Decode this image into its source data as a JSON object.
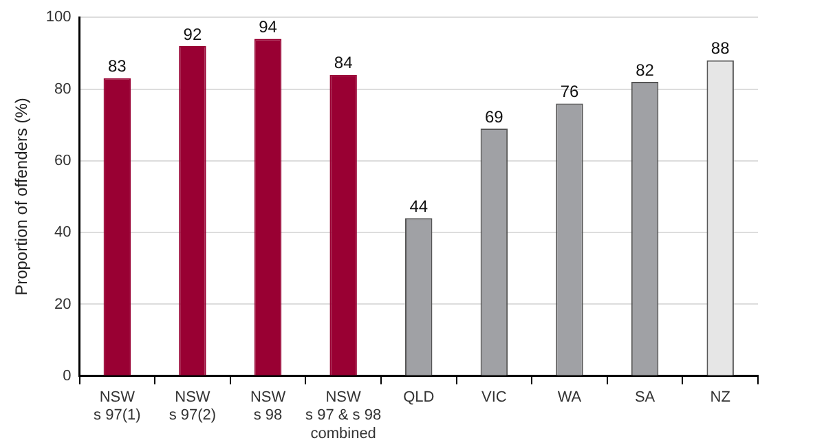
{
  "chart_data": {
    "type": "bar",
    "ylabel": "Proportion of offenders (%)",
    "categories": [
      "NSW\ns 97(1)",
      "NSW\ns 97(2)",
      "NSW\ns 98",
      "NSW\ns 97 & s 98\ncombined",
      "QLD",
      "VIC",
      "WA",
      "SA",
      "NZ"
    ],
    "values": [
      83,
      92,
      94,
      84,
      44,
      69,
      76,
      82,
      88
    ],
    "colors": [
      "#990033",
      "#990033",
      "#990033",
      "#990033",
      "#a0a1a5",
      "#a0a1a5",
      "#a0a1a5",
      "#a0a1a5",
      "#e6e6e6"
    ],
    "ylim": [
      0,
      100
    ],
    "yticks": [
      0,
      20,
      40,
      60,
      80,
      100
    ],
    "grid": "y",
    "data_labels": true
  }
}
